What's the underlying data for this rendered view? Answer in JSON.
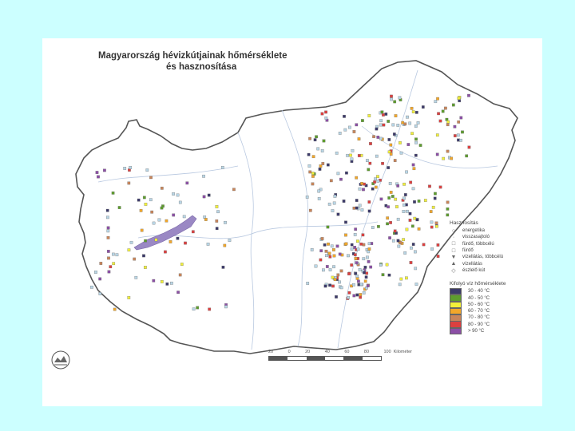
{
  "map": {
    "title_line1": "Magyarország hévizkútjainak hőmérséklete",
    "title_line2": "és hasznosítása",
    "legend": {
      "usage_heading": "Hasznosítás",
      "usage_items": [
        {
          "symbol": "○",
          "label": "energetika"
        },
        {
          "symbol": "·",
          "label": "visszasajtoló"
        },
        {
          "symbol": "□",
          "label": "fürdő, többcélú"
        },
        {
          "symbol": "□",
          "label": "fürdő"
        },
        {
          "symbol": "▼",
          "label": "vízellátás, többcélú"
        },
        {
          "symbol": "▲",
          "label": "vízellátás"
        },
        {
          "symbol": "◇",
          "label": "észlelő kút"
        }
      ],
      "temp_heading": "Kifolyó víz hőmérséklete",
      "temp_items": [
        {
          "label": "30 - 40 °C",
          "color": "#3c3a6a"
        },
        {
          "label": "40 - 50 °C",
          "color": "#5e9d2e"
        },
        {
          "label": "50 - 60 °C",
          "color": "#f2f03a"
        },
        {
          "label": "60 - 70 °C",
          "color": "#f2a72a"
        },
        {
          "label": "70 - 80 °C",
          "color": "#c9855a"
        },
        {
          "label": "80 - 90 °C",
          "color": "#dc4040"
        },
        {
          "label": "> 90 °C",
          "color": "#8c4fa6"
        }
      ]
    },
    "scale": {
      "ticks": [
        "20",
        "0",
        "20",
        "40",
        "60",
        "80",
        "100"
      ],
      "unit": "Kilométer"
    },
    "colors": {
      "background": "#ccffff",
      "lake": "#9a88c4",
      "border": "#555555"
    }
  }
}
